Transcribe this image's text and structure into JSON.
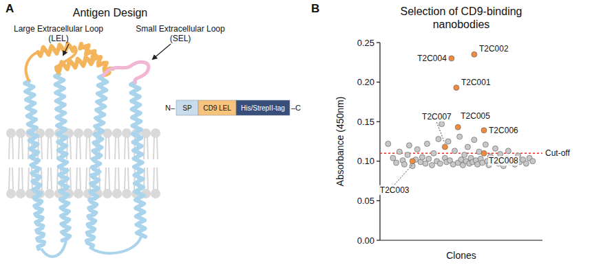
{
  "panel_a": {
    "letter": "A",
    "title": "Antigen Design",
    "callouts": [
      {
        "label": "Large Extracellular Loop",
        "abbr": "(LEL)"
      },
      {
        "label": "Small Extracellular Loop",
        "abbr": "(SEL)"
      }
    ],
    "construct": {
      "n_term": "N–",
      "c_term": "–C",
      "segments": [
        "SP",
        "CD9 LEL",
        "His/StrepII-tag"
      ]
    }
  },
  "panel_b": {
    "letter": "B"
  },
  "chart_data": {
    "type": "scatter",
    "title": "Selection of CD9-binding nanobodies",
    "xlabel": "Clones",
    "ylabel": "Absorbance (450nm)",
    "xlim": [
      0,
      100
    ],
    "ylim": [
      0,
      0.25
    ],
    "yticks": [
      {
        "value": 0,
        "label": "0.00"
      },
      {
        "value": 0.05,
        "label": "0.05"
      },
      {
        "value": 0.1,
        "label": "0.10"
      },
      {
        "value": 0.15,
        "label": "0.15"
      },
      {
        "value": 0.2,
        "label": "0.20"
      },
      {
        "value": 0.25,
        "label": "0.25"
      }
    ],
    "grid": false,
    "tick_labels": "y",
    "cutoff": {
      "value": 0.11,
      "label": "Cut-off"
    },
    "series": [
      {
        "color": "#c8c8c8",
        "marker": "circle",
        "x": [
          5,
          8,
          10,
          12,
          14,
          15,
          17,
          18,
          20,
          22,
          23,
          25,
          26,
          28,
          29,
          30,
          32,
          33,
          35,
          36,
          37,
          38,
          40,
          41,
          42,
          43,
          45,
          46,
          48,
          49,
          50,
          51,
          52,
          53,
          54,
          55,
          56,
          57,
          58,
          59,
          60,
          61,
          62,
          63,
          65,
          66,
          67,
          68,
          70,
          71,
          72,
          73,
          74,
          75,
          76,
          78,
          79,
          80,
          82,
          83,
          85,
          86,
          88,
          90,
          92,
          94
        ],
        "values": [
          0.122,
          0.104,
          0.098,
          0.112,
          0.101,
          0.096,
          0.108,
          0.12,
          0.094,
          0.102,
          0.115,
          0.099,
          0.105,
          0.097,
          0.122,
          0.103,
          0.095,
          0.11,
          0.1,
          0.128,
          0.097,
          0.147,
          0.104,
          0.099,
          0.125,
          0.101,
          0.096,
          0.113,
          0.098,
          0.131,
          0.102,
          0.095,
          0.108,
          0.1,
          0.118,
          0.097,
          0.104,
          0.099,
          0.127,
          0.101,
          0.096,
          0.112,
          0.103,
          0.098,
          0.121,
          0.1,
          0.095,
          0.106,
          0.099,
          0.116,
          0.102,
          0.097,
          0.109,
          0.1,
          0.094,
          0.103,
          0.113,
          0.098,
          0.101,
          0.096,
          0.107,
          0.099,
          0.102,
          0.097,
          0.104,
          0.1
        ]
      },
      {
        "color": "#f08a3c",
        "marker": "circle",
        "x": [
          47,
          58,
          20,
          44,
          48,
          64,
          40,
          64
        ],
        "values": [
          0.193,
          0.235,
          0.1,
          0.23,
          0.143,
          0.139,
          0.118,
          0.11
        ],
        "point_labels": [
          "T2C001",
          "T2C002",
          "T2C003",
          "T2C004",
          "T2C005",
          "T2C006",
          "T2C007",
          "T2C008"
        ]
      }
    ]
  }
}
